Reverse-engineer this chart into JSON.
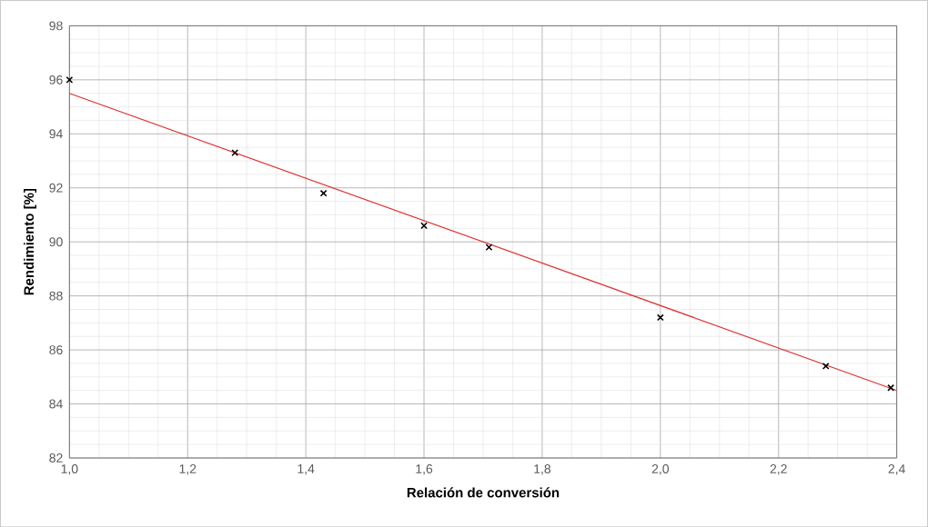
{
  "chart_data": {
    "type": "scatter",
    "xlabel": "Relación de conversión",
    "ylabel": "Rendimiento [%]",
    "xlim": [
      1.0,
      2.4
    ],
    "ylim": [
      82,
      98
    ],
    "xticks": [
      {
        "value": 1.0,
        "label": "1,0"
      },
      {
        "value": 1.2,
        "label": "1,2"
      },
      {
        "value": 1.4,
        "label": "1,4"
      },
      {
        "value": 1.6,
        "label": "1,6"
      },
      {
        "value": 1.8,
        "label": "1,8"
      },
      {
        "value": 2.0,
        "label": "2,0"
      },
      {
        "value": 2.2,
        "label": "2,2"
      },
      {
        "value": 2.4,
        "label": "2,4"
      }
    ],
    "yticks": [
      82,
      84,
      86,
      88,
      90,
      92,
      94,
      96,
      98
    ],
    "grid": true,
    "series": [
      {
        "color": "#000000",
        "marker": "cross",
        "x": [
          1.0,
          1.28,
          1.43,
          1.6,
          1.71,
          2.0,
          2.28,
          2.39
        ],
        "values": [
          96.0,
          93.3,
          91.8,
          90.6,
          89.8,
          87.2,
          85.4,
          84.6
        ]
      },
      {
        "type": "line",
        "color": "#e03030",
        "marker": "none",
        "line_style": "solid",
        "x": [
          1.0,
          2.4
        ],
        "values": [
          95.5,
          84.5
        ]
      }
    ]
  }
}
